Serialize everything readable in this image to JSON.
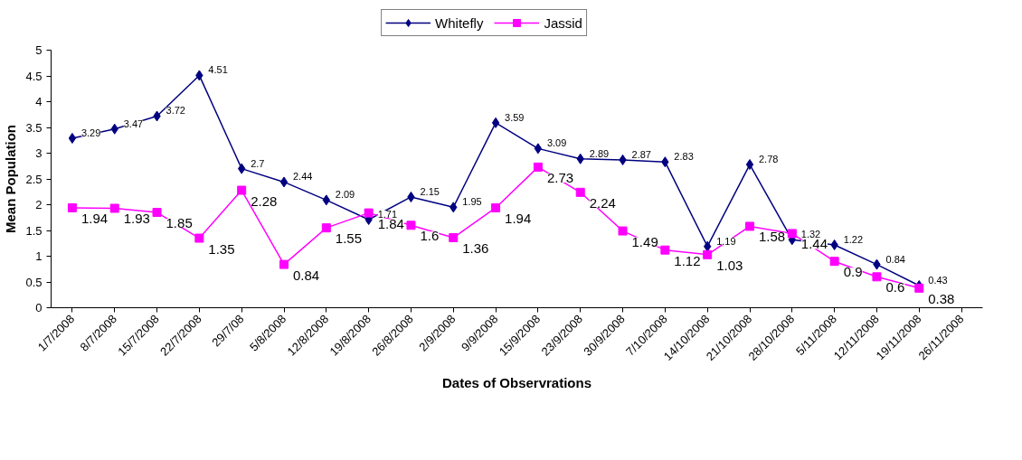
{
  "chart_data": {
    "type": "line",
    "xlabel": "Dates of Observrations",
    "ylabel": "Mean Population",
    "categories": [
      "1/7/2008",
      "8/7/2008",
      "15/7/2008",
      "22/7/2008",
      "29/7/08",
      "5/8/2008",
      "12/8/2008",
      "19/8/2008",
      "26/8/2008",
      "2/9/2008",
      "9/9/2008",
      "15/9/2008",
      "23/9/2008",
      "30/9/2008",
      "7/10/2008",
      "14/10/2008",
      "21/10/2008",
      "28/10/2008",
      "5/11/2008",
      "12/11/2008",
      "19/11/2008",
      "26/11/2008"
    ],
    "ylim": [
      0,
      5
    ],
    "yticks": [
      0,
      0.5,
      1,
      1.5,
      2,
      2.5,
      3,
      3.5,
      4,
      4.5,
      5
    ],
    "series": [
      {
        "name": "Whitefly",
        "color": "#000080",
        "marker": "diamond",
        "values": [
          3.29,
          3.47,
          3.72,
          4.51,
          2.7,
          2.44,
          2.09,
          1.71,
          2.15,
          1.95,
          3.59,
          3.09,
          2.89,
          2.87,
          2.83,
          1.19,
          2.78,
          1.32,
          1.22,
          0.84,
          0.43,
          null
        ]
      },
      {
        "name": "Jassid",
        "color": "#ff00ff",
        "marker": "square",
        "values": [
          1.94,
          1.93,
          1.85,
          1.35,
          2.28,
          0.84,
          1.55,
          1.84,
          1.6,
          1.36,
          1.94,
          2.73,
          2.24,
          1.49,
          1.12,
          1.03,
          1.58,
          1.44,
          0.9,
          0.6,
          0.38,
          null
        ]
      }
    ],
    "data_labels": true,
    "legend": "top",
    "line_style": "solid"
  }
}
